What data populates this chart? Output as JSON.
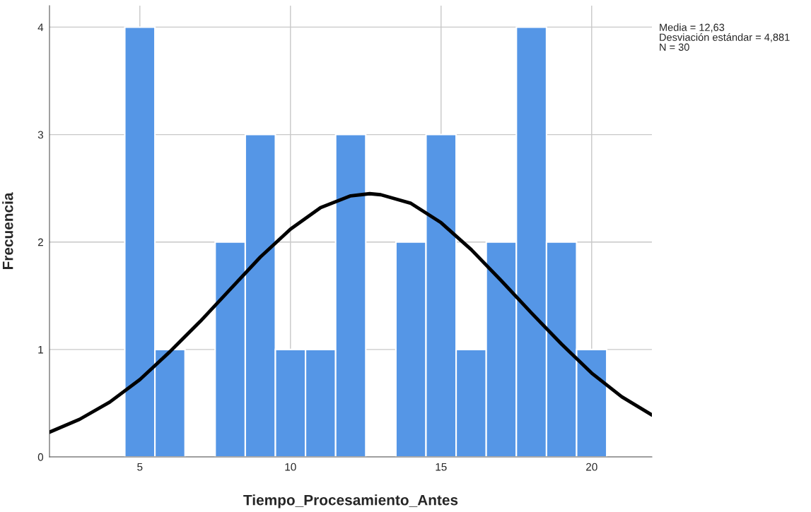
{
  "chart_data": {
    "type": "histogram",
    "xlabel": "Tiempo_Procesamiento_Antes",
    "ylabel": "Frecuencia",
    "bins": [
      4.5,
      5.5,
      6.5,
      7.5,
      8.5,
      9.5,
      10.5,
      11.5,
      12.5,
      13.5,
      14.5,
      15.5,
      16.5,
      17.5,
      18.5,
      19.5,
      20.5
    ],
    "values": [
      4,
      1,
      0,
      2,
      3,
      1,
      1,
      3,
      0,
      2,
      3,
      1,
      2,
      4,
      2,
      1
    ],
    "color": "#5596e6",
    "series": [
      {
        "type": "line",
        "color": "#000000",
        "x": [
          2,
          3,
          4,
          5,
          6,
          7,
          8,
          9,
          10,
          11,
          12,
          12.63,
          13,
          14,
          15,
          16,
          17,
          18,
          19,
          20,
          21,
          22
        ],
        "values": [
          0.23,
          0.35,
          0.51,
          0.72,
          0.98,
          1.26,
          1.56,
          1.86,
          2.12,
          2.32,
          2.43,
          2.45,
          2.44,
          2.36,
          2.18,
          1.93,
          1.64,
          1.34,
          1.05,
          0.78,
          0.56,
          0.39
        ]
      }
    ],
    "xlim": [
      2,
      22
    ],
    "xticks": [
      5,
      10,
      15,
      20
    ],
    "ylim": [
      0,
      4.2
    ],
    "yticks": [
      0,
      1,
      2,
      3,
      4
    ],
    "grid": true,
    "annotations": [
      "Media = 12,63",
      "Desviación estándar = 4,881",
      "N = 30"
    ]
  }
}
